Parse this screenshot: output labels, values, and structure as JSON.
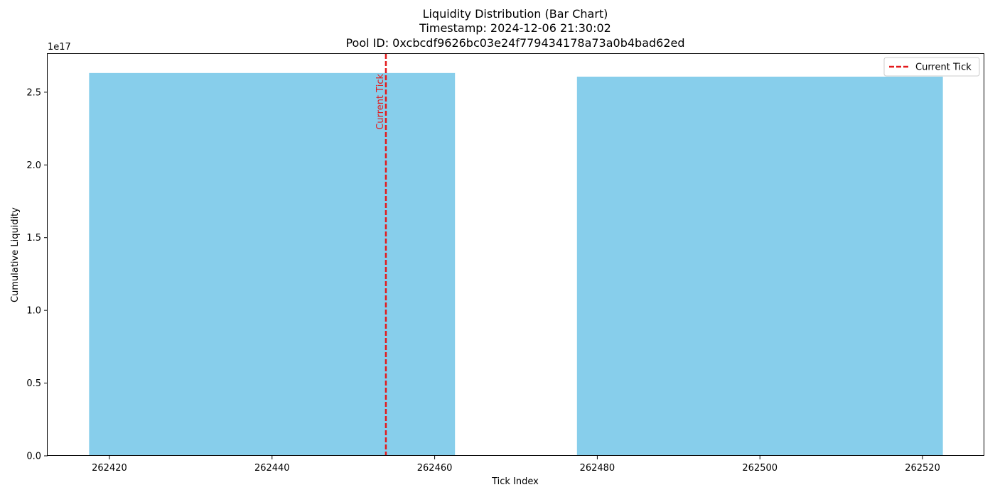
{
  "chart_data": {
    "type": "bar",
    "title_lines": [
      "Liquidity Distribution (Bar Chart)",
      "Timestamp: 2024-12-06 21:30:02",
      "Pool ID: 0xcbcdf9626bc03e24f779434178a73a0b4bad62ed"
    ],
    "xlabel": "Tick Index",
    "ylabel": "Cumulative Liquidity",
    "y_offset_label": "1e17",
    "y_scale": 1e+17,
    "xlim": [
      262412.4,
      262527.6
    ],
    "ylim": [
      0,
      2.763e+17
    ],
    "x_ticks": [
      262420,
      262440,
      262460,
      262480,
      262500,
      262520
    ],
    "x_tick_labels": [
      "262420",
      "262440",
      "262460",
      "262480",
      "262500",
      "262520"
    ],
    "y_ticks": [
      0,
      0.5,
      1.0,
      1.5,
      2.0,
      2.5
    ],
    "y_tick_labels": [
      "0.0",
      "0.5",
      "1.0",
      "1.5",
      "2.0",
      "2.5"
    ],
    "bars": [
      {
        "x_center": 262440,
        "width": 45,
        "value": 2.632e+17
      },
      {
        "x_center": 262500,
        "width": 45,
        "value": 2.607e+17
      }
    ],
    "bar_color": "#87CEEB",
    "current_tick": {
      "x": 262454,
      "label": "Current Tick",
      "color": "#e31a1c",
      "style": "dashed"
    },
    "legend": {
      "position": "top-right",
      "entries": [
        {
          "label": "Current Tick",
          "color": "#e31a1c",
          "style": "dashed"
        }
      ]
    },
    "grid": false
  }
}
